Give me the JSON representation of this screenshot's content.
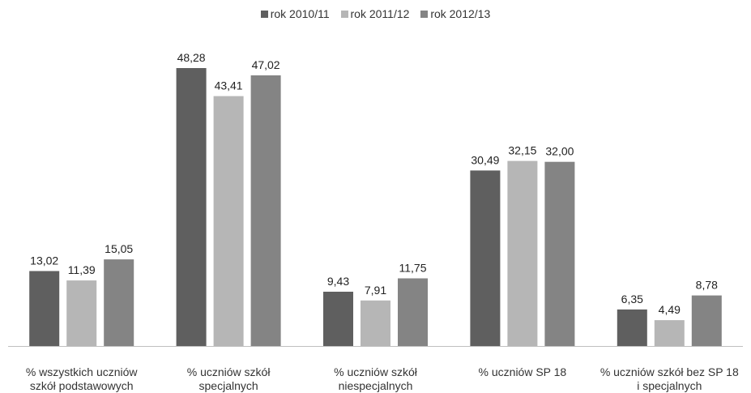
{
  "chart_data": {
    "type": "bar",
    "categories": [
      [
        "% wszystkich uczniów",
        "szkół podstawowych"
      ],
      [
        "% uczniów szkół",
        "specjalnych"
      ],
      [
        "% uczniów szkół",
        "niespecjalnych"
      ],
      [
        "% uczniów SP 18"
      ],
      [
        "% uczniów szkół bez SP 18",
        "i specjalnych"
      ]
    ],
    "series": [
      {
        "name": "rok 2010/11",
        "color": "#5f5f5f",
        "values": [
          13.02,
          48.28,
          9.43,
          30.49,
          6.35
        ],
        "labels": [
          "13,02",
          "48,28",
          "9,43",
          "30,49",
          "6,35"
        ]
      },
      {
        "name": "rok 2011/12",
        "color": "#b6b6b6",
        "values": [
          11.39,
          43.41,
          7.91,
          32.15,
          4.49
        ],
        "labels": [
          "11,39",
          "43,41",
          "7,91",
          "32,15",
          "4,49"
        ]
      },
      {
        "name": "rok 2012/13",
        "color": "#848484",
        "values": [
          15.05,
          47.02,
          11.75,
          32.0,
          8.78
        ],
        "labels": [
          "15,05",
          "47,02",
          "11,75",
          "32,00",
          "8,78"
        ]
      }
    ],
    "ylim": [
      0,
      53.8
    ],
    "grid": false,
    "legend_position": "top-center"
  }
}
